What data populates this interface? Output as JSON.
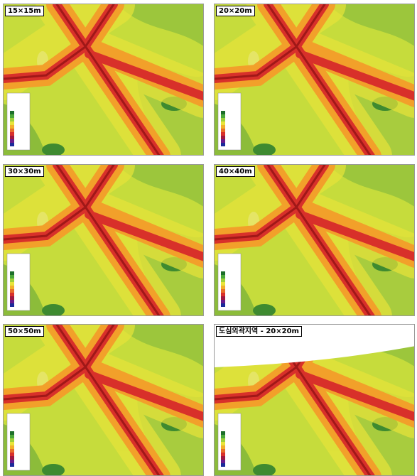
{
  "panels": [
    {
      "label": "15×15m"
    },
    {
      "label": "20×20m"
    },
    {
      "label": "30×30m"
    },
    {
      "label": "40×40m"
    },
    {
      "label": "50×50m"
    },
    {
      "label": "도심외곽지역 - 20×20m"
    }
  ]
}
